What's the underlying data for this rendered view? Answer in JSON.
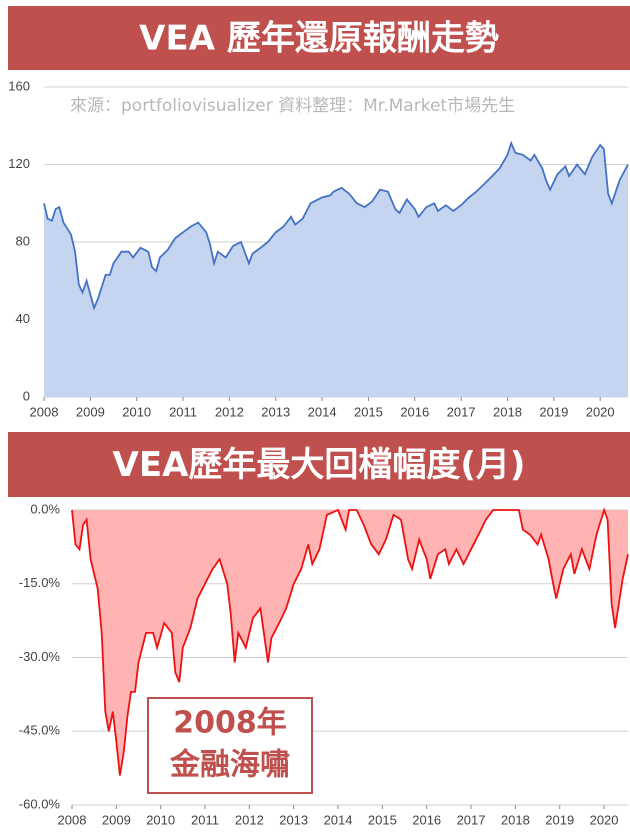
{
  "chart_data": [
    {
      "type": "area",
      "title": "VEA 歷年還原報酬走勢",
      "annotation": "來源：portfoliovisualizer 資料整理：Mr.Market市場先生",
      "color": "#4472c4",
      "fill": "#c5d5f0",
      "grid": true,
      "xlim": [
        2008,
        2020.6
      ],
      "ylim": [
        0,
        160
      ],
      "xticks": [
        2008,
        2009,
        2010,
        2011,
        2012,
        2013,
        2014,
        2015,
        2016,
        2017,
        2018,
        2019,
        2020
      ],
      "yticks": [
        0,
        40,
        80,
        120,
        160
      ],
      "x": [
        2008.0,
        2008.08,
        2008.17,
        2008.25,
        2008.33,
        2008.42,
        2008.58,
        2008.67,
        2008.75,
        2008.83,
        2008.92,
        2009.0,
        2009.08,
        2009.17,
        2009.33,
        2009.42,
        2009.5,
        2009.67,
        2009.83,
        2009.92,
        2010.08,
        2010.25,
        2010.33,
        2010.42,
        2010.5,
        2010.67,
        2010.83,
        2011.0,
        2011.17,
        2011.33,
        2011.5,
        2011.58,
        2011.67,
        2011.75,
        2011.92,
        2012.08,
        2012.25,
        2012.42,
        2012.5,
        2012.67,
        2012.83,
        2013.0,
        2013.17,
        2013.33,
        2013.42,
        2013.58,
        2013.75,
        2014.0,
        2014.17,
        2014.25,
        2014.42,
        2014.58,
        2014.75,
        2014.92,
        2015.08,
        2015.25,
        2015.42,
        2015.58,
        2015.67,
        2015.83,
        2016.0,
        2016.08,
        2016.25,
        2016.42,
        2016.5,
        2016.67,
        2016.83,
        2017.0,
        2017.17,
        2017.33,
        2017.5,
        2017.67,
        2017.83,
        2018.0,
        2018.08,
        2018.17,
        2018.33,
        2018.5,
        2018.58,
        2018.75,
        2018.83,
        2018.92,
        2019.08,
        2019.25,
        2019.33,
        2019.5,
        2019.67,
        2019.83,
        2020.0,
        2020.08,
        2020.17,
        2020.25,
        2020.42,
        2020.6
      ],
      "values": [
        100,
        92,
        91,
        97,
        98,
        90,
        84,
        75,
        58,
        54,
        60,
        53,
        46,
        51,
        63,
        63,
        69,
        75,
        75,
        72,
        77,
        75,
        67,
        65,
        72,
        76,
        82,
        85,
        88,
        90,
        85,
        79,
        69,
        75,
        72,
        78,
        80,
        69,
        74,
        77,
        80,
        85,
        88,
        93,
        89,
        92,
        100,
        103,
        104,
        106,
        108,
        105,
        100,
        98,
        101,
        107,
        106,
        97,
        95,
        102,
        97,
        93,
        98,
        100,
        96,
        99,
        96,
        99,
        103,
        106,
        110,
        114,
        118,
        125,
        131,
        126,
        125,
        122,
        125,
        118,
        112,
        107,
        115,
        119,
        114,
        120,
        115,
        124,
        130,
        128,
        105,
        100,
        112,
        120
      ]
    },
    {
      "type": "area",
      "title": "VEA歷年最大回檔幅度(月)",
      "annotation": [
        "2008年",
        "金融海嘯"
      ],
      "color": "#ee1111",
      "fill": "#ffb3b3",
      "grid": true,
      "xlim": [
        2008,
        2020.54
      ],
      "ylim": [
        -60,
        0
      ],
      "xticks": [
        2008,
        2009,
        2010,
        2011,
        2012,
        2013,
        2014,
        2015,
        2016,
        2017,
        2018,
        2019,
        2020
      ],
      "yticks": [
        {
          "value": 0,
          "label": "0.0%"
        },
        {
          "value": -15,
          "label": "-15.0%"
        },
        {
          "value": -30,
          "label": "-30.0%"
        },
        {
          "value": -45,
          "label": "-45.0%"
        },
        {
          "value": -60,
          "label": "-60.0%"
        }
      ],
      "x": [
        2008.0,
        2008.08,
        2008.17,
        2008.25,
        2008.33,
        2008.42,
        2008.58,
        2008.67,
        2008.75,
        2008.83,
        2008.92,
        2009.0,
        2009.08,
        2009.17,
        2009.25,
        2009.33,
        2009.42,
        2009.5,
        2009.67,
        2009.83,
        2009.92,
        2010.08,
        2010.25,
        2010.33,
        2010.42,
        2010.5,
        2010.67,
        2010.83,
        2011.0,
        2011.17,
        2011.33,
        2011.5,
        2011.58,
        2011.67,
        2011.75,
        2011.92,
        2012.08,
        2012.25,
        2012.42,
        2012.5,
        2012.67,
        2012.83,
        2013.0,
        2013.17,
        2013.33,
        2013.42,
        2013.58,
        2013.75,
        2014.0,
        2014.17,
        2014.25,
        2014.42,
        2014.58,
        2014.75,
        2014.92,
        2015.08,
        2015.25,
        2015.42,
        2015.58,
        2015.67,
        2015.83,
        2016.0,
        2016.08,
        2016.25,
        2016.42,
        2016.5,
        2016.67,
        2016.83,
        2017.0,
        2017.17,
        2017.33,
        2017.5,
        2018.0,
        2018.08,
        2018.17,
        2018.33,
        2018.5,
        2018.58,
        2018.75,
        2018.83,
        2018.92,
        2019.08,
        2019.25,
        2019.33,
        2019.5,
        2019.67,
        2019.83,
        2020.0,
        2020.08,
        2020.17,
        2020.25,
        2020.42,
        2020.54
      ],
      "values": [
        0,
        -7,
        -8,
        -3,
        -2,
        -10,
        -16,
        -25,
        -41,
        -45,
        -41,
        -47,
        -54,
        -49,
        -42,
        -37,
        -37,
        -31,
        -25,
        -25,
        -28,
        -23,
        -25,
        -33,
        -35,
        -28,
        -24,
        -18,
        -15,
        -12,
        -10,
        -15,
        -21,
        -31,
        -25,
        -28,
        -22,
        -20,
        -31,
        -26,
        -23,
        -20,
        -15,
        -12,
        -7,
        -11,
        -8,
        -1,
        0,
        -4,
        0,
        0,
        -3,
        -7,
        -9,
        -6,
        -1,
        -2,
        -10,
        -12,
        -6,
        -10,
        -14,
        -9,
        -8,
        -11,
        -8,
        -11,
        -8,
        -5,
        -2,
        0,
        0,
        0,
        -4,
        -5,
        -7,
        -5,
        -10,
        -14,
        -18,
        -12,
        -9,
        -13,
        -8,
        -12,
        -5,
        0,
        -2,
        -19,
        -24,
        -14,
        -9
      ]
    }
  ]
}
